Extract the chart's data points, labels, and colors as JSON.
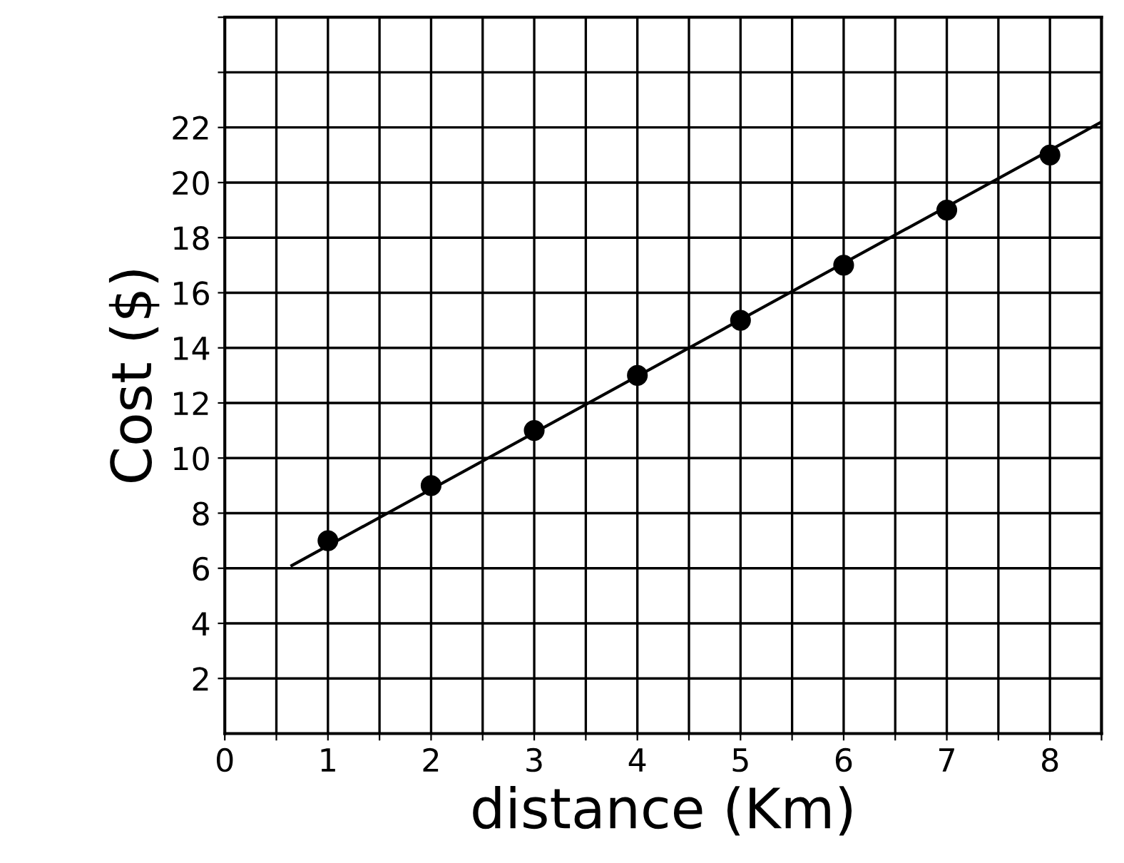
{
  "chart_data": {
    "type": "scatter",
    "xlabel": "distance (Km)",
    "ylabel": "Cost ($)",
    "xlim": [
      0,
      8.5
    ],
    "ylim": [
      0,
      26
    ],
    "xticks": [
      0,
      {
        "value": 0.5,
        "label": null
      },
      1,
      {
        "value": 1.5,
        "label": null
      },
      2,
      {
        "value": 2.5,
        "label": null
      },
      3,
      {
        "value": 3.5,
        "label": null
      },
      4,
      {
        "value": 4.5,
        "label": null
      },
      5,
      {
        "value": 5.5,
        "label": null
      },
      6,
      {
        "value": 6.5,
        "label": null
      },
      7,
      {
        "value": 7.5,
        "label": null
      },
      8,
      {
        "value": 8.5,
        "label": null
      }
    ],
    "yticks": [
      2,
      4,
      6,
      8,
      10,
      12,
      14,
      16,
      18,
      20,
      22,
      {
        "value": 24,
        "label": null
      },
      {
        "value": 26,
        "label": null
      }
    ],
    "grid": true,
    "series": [
      {
        "marker": "circle",
        "color": "#000000",
        "x": [
          1,
          2,
          3,
          4,
          5,
          6,
          7,
          8
        ],
        "values": [
          7,
          9,
          11,
          13,
          15,
          17,
          19,
          21
        ]
      },
      {
        "type": "line",
        "marker": "none",
        "color": "#000000",
        "x": [
          0.65,
          8.5
        ],
        "values": [
          6.1,
          22.2
        ]
      }
    ]
  }
}
